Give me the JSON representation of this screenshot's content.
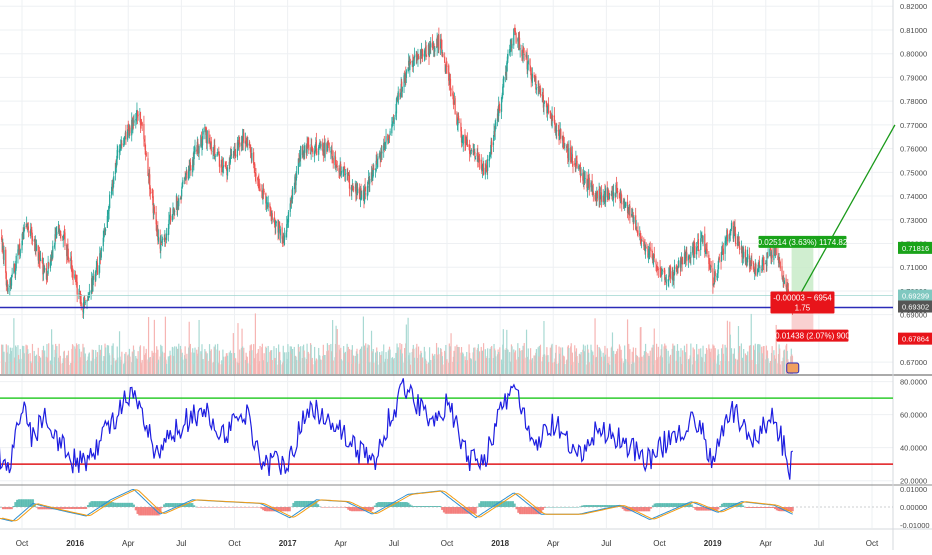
{
  "colors": {
    "background": "#ffffff",
    "grid": "#eef0f3",
    "up": "#26a69a",
    "down": "#ef5350",
    "up_volume": "#a8d9d3",
    "down_volume": "#f6b5b3",
    "support_line": "#2b2bb8",
    "rsi_line": "#1e1ee0",
    "rsi_upper": "#2ecc2e",
    "rsi_lower": "#e0171b",
    "macd": "#2f8fd0",
    "signal": "#f39c12",
    "target_zone": "#c8ebc8",
    "stop_zone": "#f8c9c9",
    "projection": "#1a9a1a",
    "label_green": "#1aa31a",
    "label_red": "#e8141a",
    "label_dark": "#555555",
    "label_teal": "#80c8c0"
  },
  "price_labels": {
    "target_price": "0.71816",
    "current_price": "0.69299",
    "support_price": "0.69302",
    "stop_price": "0.67864"
  },
  "position_tool": {
    "target_text": "0.02514 (3.63%) 1174.82",
    "center_text": "-0.00003 ~ 6954",
    "ratio_text": "1.75",
    "stop_text": "0.01438 (2.07%) 900"
  },
  "chart_data": [
    {
      "type": "candlestick",
      "pane": "price",
      "y_range": [
        0.665,
        0.822
      ],
      "y_ticks": [
        "0.82000",
        "0.81000",
        "0.80000",
        "0.79000",
        "0.78000",
        "0.77000",
        "0.76000",
        "0.75000",
        "0.74000",
        "0.73000",
        "0.72000",
        "0.71000",
        "0.70000",
        "0.69000",
        "0.67000"
      ],
      "x_ticks": [
        "Oct",
        "2016",
        "Apr",
        "Jul",
        "Oct",
        "2017",
        "Apr",
        "Jul",
        "Oct",
        "2018",
        "Apr",
        "Jul",
        "Oct",
        "2019",
        "Apr",
        "Jul",
        "Oct"
      ],
      "x_tick_dates": [
        "2015-10",
        "2016-01",
        "2016-04",
        "2016-07",
        "2016-10",
        "2017-01",
        "2017-04",
        "2017-07",
        "2017-10",
        "2018-01",
        "2018-04",
        "2018-07",
        "2018-10",
        "2019-01",
        "2019-04",
        "2019-07",
        "2019-10"
      ],
      "close_path": [
        [
          "2015-08-20",
          0.731
        ],
        [
          "2015-09-08",
          0.7
        ],
        [
          "2015-10-10",
          0.729
        ],
        [
          "2015-11-12",
          0.706
        ],
        [
          "2015-12-05",
          0.728
        ],
        [
          "2016-01-15",
          0.692
        ],
        [
          "2016-02-10",
          0.71
        ],
        [
          "2016-03-15",
          0.76
        ],
        [
          "2016-04-20",
          0.775
        ],
        [
          "2016-05-25",
          0.718
        ],
        [
          "2016-07-01",
          0.743
        ],
        [
          "2016-08-10",
          0.767
        ],
        [
          "2016-09-15",
          0.75
        ],
        [
          "2016-10-20",
          0.766
        ],
        [
          "2016-11-15",
          0.744
        ],
        [
          "2016-12-25",
          0.721
        ],
        [
          "2017-01-25",
          0.76
        ],
        [
          "2017-03-10",
          0.76
        ],
        [
          "2017-04-15",
          0.746
        ],
        [
          "2017-05-10",
          0.74
        ],
        [
          "2017-06-15",
          0.76
        ],
        [
          "2017-07-25",
          0.795
        ],
        [
          "2017-09-20",
          0.805
        ],
        [
          "2017-10-25",
          0.765
        ],
        [
          "2017-12-08",
          0.75
        ],
        [
          "2018-01-25",
          0.81
        ],
        [
          "2018-03-10",
          0.782
        ],
        [
          "2018-04-25",
          0.759
        ],
        [
          "2018-06-15",
          0.74
        ],
        [
          "2018-07-20",
          0.742
        ],
        [
          "2018-09-10",
          0.718
        ],
        [
          "2018-10-10",
          0.705
        ],
        [
          "2018-10-26",
          0.708
        ],
        [
          "2018-12-15",
          0.722
        ],
        [
          "2019-01-03",
          0.704
        ],
        [
          "2019-01-31",
          0.727
        ],
        [
          "2019-03-10",
          0.708
        ],
        [
          "2019-04-17",
          0.717
        ],
        [
          "2019-05-17",
          0.693
        ]
      ],
      "support_level": 0.69302,
      "projection": [
        [
          "2019-05-17",
          0.693
        ],
        [
          "2019-11-10",
          0.77
        ]
      ],
      "position": {
        "entry": 0.69302,
        "target": 0.71816,
        "stop": 0.67864,
        "start": "2019-05-15",
        "end": "2019-06-22"
      }
    },
    {
      "type": "line",
      "pane": "rsi",
      "y_range": [
        18,
        84
      ],
      "y_ticks": [
        "80.0000",
        "60.0000",
        "40.0000",
        "20.0000"
      ],
      "levels": [
        70,
        30
      ],
      "path": [
        [
          "2015-08-20",
          38
        ],
        [
          "2015-09-08",
          25
        ],
        [
          "2015-10-01",
          68
        ],
        [
          "2015-10-20",
          45
        ],
        [
          "2015-11-10",
          62
        ],
        [
          "2015-12-20",
          33
        ],
        [
          "2016-01-15",
          30
        ],
        [
          "2016-02-20",
          48
        ],
        [
          "2016-03-25",
          68
        ],
        [
          "2016-04-15",
          69
        ],
        [
          "2016-05-20",
          34
        ],
        [
          "2016-06-25",
          52
        ],
        [
          "2016-08-05",
          63
        ],
        [
          "2016-09-15",
          48
        ],
        [
          "2016-10-20",
          62
        ],
        [
          "2016-11-20",
          30
        ],
        [
          "2016-12-30",
          32
        ],
        [
          "2017-02-10",
          65
        ],
        [
          "2017-03-20",
          56
        ],
        [
          "2017-04-25",
          40
        ],
        [
          "2017-05-30",
          31
        ],
        [
          "2017-06-25",
          60
        ],
        [
          "2017-07-22",
          77
        ],
        [
          "2017-08-30",
          58
        ],
        [
          "2017-10-05",
          66
        ],
        [
          "2017-11-05",
          33
        ],
        [
          "2017-12-05",
          34
        ],
        [
          "2018-01-10",
          68
        ],
        [
          "2018-01-25",
          80
        ],
        [
          "2018-02-25",
          40
        ],
        [
          "2018-04-05",
          55
        ],
        [
          "2018-05-10",
          32
        ],
        [
          "2018-06-20",
          52
        ],
        [
          "2018-07-25",
          45
        ],
        [
          "2018-09-15",
          32
        ],
        [
          "2018-10-28",
          50
        ],
        [
          "2018-12-05",
          56
        ],
        [
          "2019-01-03",
          30
        ],
        [
          "2019-02-01",
          65
        ],
        [
          "2019-03-05",
          45
        ],
        [
          "2019-04-15",
          58
        ],
        [
          "2019-05-06",
          36
        ],
        [
          "2019-05-12",
          24
        ],
        [
          "2019-05-17",
          38
        ]
      ]
    },
    {
      "type": "histogram",
      "pane": "macd",
      "y_range": [
        -0.013,
        0.013
      ],
      "y_ticks": [
        "0.01000",
        "0.00000",
        "-0.01000"
      ],
      "series": [
        {
          "name": "",
          "path": [
            [
              "2015-08-20",
              -0.006
            ],
            [
              "2015-09-15",
              -0.008
            ],
            [
              "2015-10-20",
              0.002
            ],
            [
              "2015-11-25",
              -0.001
            ],
            [
              "2016-01-20",
              -0.005
            ],
            [
              "2016-03-01",
              0.004
            ],
            [
              "2016-04-10",
              0.01
            ],
            [
              "2016-05-25",
              -0.004
            ],
            [
              "2016-07-20",
              0.004
            ],
            [
              "2016-09-15",
              0.003
            ],
            [
              "2016-11-15",
              0.002
            ],
            [
              "2017-01-05",
              -0.006
            ],
            [
              "2017-02-20",
              0.004
            ],
            [
              "2017-04-10",
              0.003
            ],
            [
              "2017-05-25",
              -0.004
            ],
            [
              "2017-07-25",
              0.007
            ],
            [
              "2017-09-20",
              0.009
            ],
            [
              "2017-11-20",
              -0.006
            ],
            [
              "2018-01-25",
              0.008
            ],
            [
              "2018-03-10",
              -0.004
            ],
            [
              "2018-05-15",
              -0.004
            ],
            [
              "2018-07-25",
              0.001
            ],
            [
              "2018-09-15",
              -0.007
            ],
            [
              "2018-11-25",
              0.003
            ],
            [
              "2019-01-10",
              -0.003
            ],
            [
              "2019-02-20",
              0.003
            ],
            [
              "2019-04-15",
              0.001
            ],
            [
              "2019-05-17",
              -0.004
            ]
          ]
        }
      ]
    }
  ]
}
